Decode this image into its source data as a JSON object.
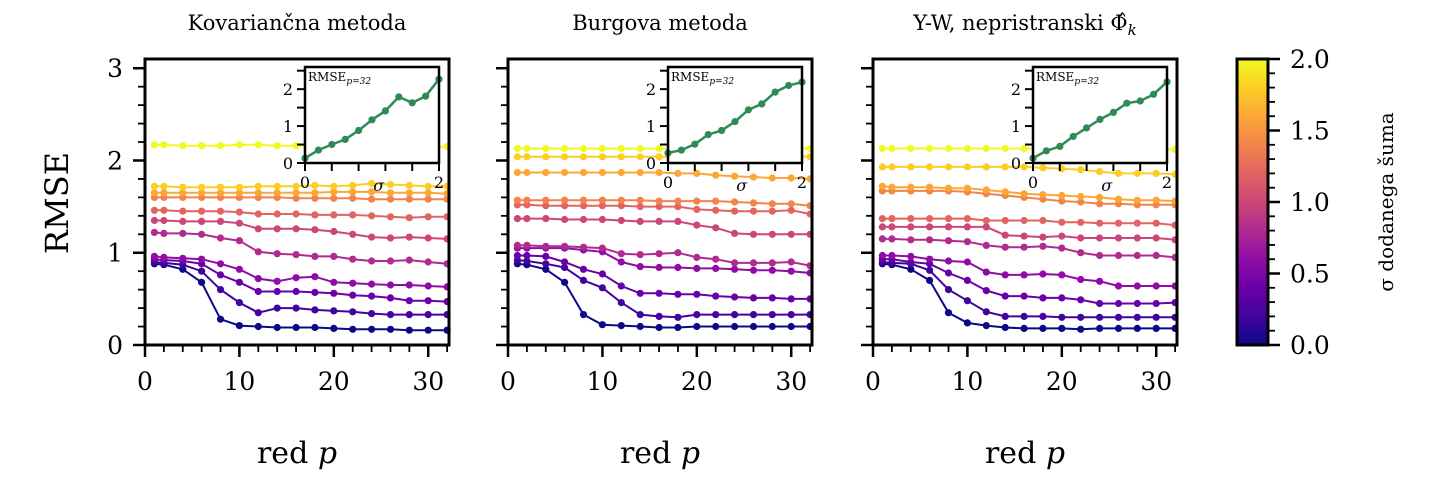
{
  "chart_data": {
    "type": "line",
    "ylabel": "RMSE",
    "xlabel": "red p",
    "x": [
      1,
      2,
      4,
      6,
      8,
      10,
      12,
      14,
      16,
      18,
      20,
      22,
      24,
      26,
      28,
      30,
      32
    ],
    "xlim": [
      0,
      32.2
    ],
    "ylim": [
      0,
      3.1
    ],
    "xticks": [
      "0",
      "10",
      "20",
      "30"
    ],
    "yticks": [
      "0",
      "1",
      "2",
      "3"
    ],
    "colormap": "plasma",
    "colorbar": {
      "label": "σ dodanega šuma",
      "range": [
        0.0,
        2.0
      ],
      "ticks": [
        "0.0",
        "0.5",
        "1.0",
        "1.5",
        "2.0"
      ]
    },
    "sigma": [
      0.0,
      0.2,
      0.4,
      0.6,
      0.8,
      1.0,
      1.2,
      1.4,
      1.6,
      1.8,
      2.0
    ],
    "inset": {
      "label": "RMSE",
      "label_sub": "p=32",
      "xlabel": "σ",
      "xlim": [
        0,
        2
      ],
      "ylim": [
        0,
        2.6
      ],
      "xticks": [
        "0",
        "2"
      ],
      "yticks": [
        "0",
        "1",
        "2"
      ],
      "color": "#2e8b57"
    },
    "panels": [
      {
        "title": "Kovariančna metoda",
        "series": [
          {
            "sigma": 0.0,
            "values": [
              0.88,
              0.87,
              0.82,
              0.68,
              0.28,
              0.21,
              0.2,
              0.19,
              0.19,
              0.19,
              0.18,
              0.17,
              0.17,
              0.17,
              0.16,
              0.16,
              0.16
            ]
          },
          {
            "sigma": 0.2,
            "values": [
              0.9,
              0.89,
              0.87,
              0.8,
              0.6,
              0.46,
              0.35,
              0.4,
              0.4,
              0.38,
              0.37,
              0.36,
              0.34,
              0.33,
              0.33,
              0.33,
              0.33
            ]
          },
          {
            "sigma": 0.4,
            "values": [
              0.93,
              0.92,
              0.91,
              0.88,
              0.76,
              0.68,
              0.58,
              0.58,
              0.58,
              0.57,
              0.56,
              0.54,
              0.53,
              0.51,
              0.48,
              0.48,
              0.47
            ]
          },
          {
            "sigma": 0.6,
            "values": [
              0.96,
              0.95,
              0.94,
              0.93,
              0.88,
              0.82,
              0.72,
              0.69,
              0.73,
              0.74,
              0.68,
              0.67,
              0.66,
              0.65,
              0.65,
              0.64,
              0.63
            ]
          },
          {
            "sigma": 0.8,
            "values": [
              1.22,
              1.21,
              1.21,
              1.2,
              1.16,
              1.13,
              1.01,
              0.99,
              0.98,
              0.96,
              0.96,
              0.93,
              0.91,
              0.91,
              0.92,
              0.9,
              0.88
            ]
          },
          {
            "sigma": 1.0,
            "values": [
              1.35,
              1.35,
              1.34,
              1.34,
              1.34,
              1.32,
              1.26,
              1.26,
              1.26,
              1.25,
              1.23,
              1.2,
              1.17,
              1.16,
              1.17,
              1.16,
              1.15
            ]
          },
          {
            "sigma": 1.2,
            "values": [
              1.46,
              1.46,
              1.45,
              1.45,
              1.45,
              1.44,
              1.42,
              1.42,
              1.42,
              1.41,
              1.41,
              1.41,
              1.4,
              1.39,
              1.38,
              1.39,
              1.39
            ]
          },
          {
            "sigma": 1.4,
            "values": [
              1.6,
              1.6,
              1.6,
              1.6,
              1.6,
              1.6,
              1.6,
              1.6,
              1.59,
              1.59,
              1.59,
              1.59,
              1.58,
              1.58,
              1.58,
              1.58,
              1.58
            ]
          },
          {
            "sigma": 1.6,
            "values": [
              1.65,
              1.65,
              1.65,
              1.65,
              1.65,
              1.65,
              1.65,
              1.65,
              1.65,
              1.65,
              1.66,
              1.66,
              1.66,
              1.65,
              1.65,
              1.65,
              1.64
            ]
          },
          {
            "sigma": 1.8,
            "values": [
              1.72,
              1.72,
              1.71,
              1.71,
              1.71,
              1.71,
              1.72,
              1.72,
              1.72,
              1.73,
              1.72,
              1.73,
              1.75,
              1.74,
              1.73,
              1.72,
              1.72
            ]
          },
          {
            "sigma": 2.0,
            "values": [
              2.17,
              2.17,
              2.16,
              2.16,
              2.16,
              2.17,
              2.17,
              2.16,
              2.16,
              2.16,
              2.16,
              2.16,
              2.15,
              2.15,
              2.15,
              2.15,
              2.15
            ]
          }
        ],
        "inset_values": [
          0.13,
          0.35,
          0.5,
          0.64,
          0.88,
          1.17,
          1.41,
          1.79,
          1.63,
          1.81,
          2.27
        ]
      },
      {
        "title": "Burgova metoda",
        "series": [
          {
            "sigma": 0.0,
            "values": [
              0.88,
              0.87,
              0.82,
              0.68,
              0.33,
              0.22,
              0.21,
              0.2,
              0.19,
              0.19,
              0.2,
              0.2,
              0.2,
              0.2,
              0.2,
              0.2,
              0.2
            ]
          },
          {
            "sigma": 0.2,
            "values": [
              0.92,
              0.91,
              0.88,
              0.84,
              0.7,
              0.62,
              0.46,
              0.33,
              0.31,
              0.3,
              0.33,
              0.33,
              0.33,
              0.33,
              0.33,
              0.33,
              0.33
            ]
          },
          {
            "sigma": 0.4,
            "values": [
              0.97,
              0.97,
              0.96,
              0.9,
              0.82,
              0.77,
              0.64,
              0.56,
              0.56,
              0.55,
              0.55,
              0.53,
              0.52,
              0.51,
              0.51,
              0.5,
              0.5
            ]
          },
          {
            "sigma": 0.6,
            "values": [
              1.05,
              1.05,
              1.05,
              1.05,
              1.03,
              1.01,
              0.9,
              0.85,
              0.84,
              0.84,
              0.83,
              0.83,
              0.82,
              0.81,
              0.81,
              0.8,
              0.78
            ]
          },
          {
            "sigma": 0.8,
            "values": [
              1.08,
              1.08,
              1.07,
              1.07,
              1.06,
              1.05,
              0.99,
              0.98,
              0.99,
              1.0,
              0.95,
              0.93,
              0.89,
              0.89,
              0.89,
              0.9,
              0.86
            ]
          },
          {
            "sigma": 1.0,
            "values": [
              1.37,
              1.37,
              1.37,
              1.36,
              1.36,
              1.36,
              1.35,
              1.34,
              1.34,
              1.34,
              1.3,
              1.27,
              1.21,
              1.2,
              1.2,
              1.2,
              1.2
            ]
          },
          {
            "sigma": 1.2,
            "values": [
              1.52,
              1.52,
              1.51,
              1.51,
              1.51,
              1.51,
              1.51,
              1.5,
              1.5,
              1.5,
              1.47,
              1.46,
              1.45,
              1.45,
              1.45,
              1.46,
              1.42
            ]
          },
          {
            "sigma": 1.4,
            "values": [
              1.57,
              1.57,
              1.57,
              1.57,
              1.57,
              1.57,
              1.57,
              1.57,
              1.56,
              1.56,
              1.56,
              1.56,
              1.55,
              1.54,
              1.53,
              1.53,
              1.51
            ]
          },
          {
            "sigma": 1.6,
            "values": [
              1.87,
              1.87,
              1.87,
              1.87,
              1.87,
              1.87,
              1.87,
              1.87,
              1.87,
              1.86,
              1.86,
              1.84,
              1.83,
              1.82,
              1.81,
              1.81,
              1.8
            ]
          },
          {
            "sigma": 1.8,
            "values": [
              2.04,
              2.04,
              2.04,
              2.04,
              2.04,
              2.04,
              2.04,
              2.04,
              2.04,
              2.04,
              2.04,
              2.04,
              2.04,
              2.04,
              2.04,
              2.05,
              2.04
            ]
          },
          {
            "sigma": 2.0,
            "values": [
              2.13,
              2.13,
              2.13,
              2.13,
              2.13,
              2.13,
              2.13,
              2.13,
              2.13,
              2.13,
              2.13,
              2.13,
              2.13,
              2.13,
              2.13,
              2.13,
              2.13
            ]
          }
        ],
        "inset_values": [
          0.27,
          0.35,
          0.51,
          0.77,
          0.88,
          1.12,
          1.44,
          1.6,
          1.92,
          2.1,
          2.19
        ]
      },
      {
        "title": "Y-W, nepristranski Φ̂",
        "title_sub": "k",
        "series": [
          {
            "sigma": 0.0,
            "values": [
              0.88,
              0.87,
              0.82,
              0.7,
              0.35,
              0.24,
              0.21,
              0.19,
              0.18,
              0.18,
              0.18,
              0.17,
              0.18,
              0.18,
              0.18,
              0.18,
              0.18
            ]
          },
          {
            "sigma": 0.2,
            "values": [
              0.9,
              0.89,
              0.88,
              0.81,
              0.6,
              0.48,
              0.36,
              0.31,
              0.31,
              0.31,
              0.3,
              0.3,
              0.3,
              0.3,
              0.3,
              0.3,
              0.3
            ]
          },
          {
            "sigma": 0.4,
            "values": [
              0.93,
              0.93,
              0.9,
              0.88,
              0.78,
              0.7,
              0.59,
              0.53,
              0.53,
              0.51,
              0.51,
              0.49,
              0.45,
              0.45,
              0.45,
              0.45,
              0.46
            ]
          },
          {
            "sigma": 0.6,
            "values": [
              0.97,
              0.97,
              0.96,
              0.93,
              0.91,
              0.9,
              0.79,
              0.76,
              0.76,
              0.77,
              0.76,
              0.71,
              0.69,
              0.64,
              0.64,
              0.64,
              0.64
            ]
          },
          {
            "sigma": 0.8,
            "values": [
              1.15,
              1.15,
              1.14,
              1.14,
              1.13,
              1.12,
              1.08,
              1.06,
              1.06,
              1.07,
              1.05,
              1.0,
              0.97,
              0.97,
              0.97,
              0.97,
              0.95
            ]
          },
          {
            "sigma": 1.0,
            "values": [
              1.28,
              1.28,
              1.28,
              1.28,
              1.28,
              1.28,
              1.28,
              1.19,
              1.18,
              1.17,
              1.18,
              1.16,
              1.16,
              1.16,
              1.16,
              1.16,
              1.14
            ]
          },
          {
            "sigma": 1.2,
            "values": [
              1.37,
              1.37,
              1.37,
              1.37,
              1.37,
              1.37,
              1.35,
              1.35,
              1.35,
              1.35,
              1.33,
              1.33,
              1.32,
              1.32,
              1.32,
              1.32,
              1.3
            ]
          },
          {
            "sigma": 1.4,
            "values": [
              1.67,
              1.67,
              1.67,
              1.67,
              1.67,
              1.66,
              1.64,
              1.62,
              1.6,
              1.58,
              1.56,
              1.55,
              1.53,
              1.53,
              1.52,
              1.52,
              1.52
            ]
          },
          {
            "sigma": 1.6,
            "values": [
              1.72,
              1.71,
              1.71,
              1.71,
              1.7,
              1.7,
              1.68,
              1.66,
              1.64,
              1.63,
              1.62,
              1.61,
              1.6,
              1.58,
              1.57,
              1.57,
              1.56
            ]
          },
          {
            "sigma": 1.8,
            "values": [
              1.93,
              1.93,
              1.93,
              1.93,
              1.93,
              1.93,
              1.93,
              1.93,
              1.93,
              1.92,
              1.91,
              1.9,
              1.88,
              1.86,
              1.86,
              1.86,
              1.85
            ]
          },
          {
            "sigma": 2.0,
            "values": [
              2.13,
              2.13,
              2.13,
              2.13,
              2.13,
              2.13,
              2.13,
              2.13,
              2.13,
              2.13,
              2.13,
              2.13,
              2.13,
              2.13,
              2.12,
              2.12,
              2.12
            ]
          }
        ],
        "inset_values": [
          0.13,
          0.33,
          0.45,
          0.72,
          0.95,
          1.18,
          1.37,
          1.62,
          1.68,
          1.86,
          2.2
        ]
      }
    ]
  }
}
